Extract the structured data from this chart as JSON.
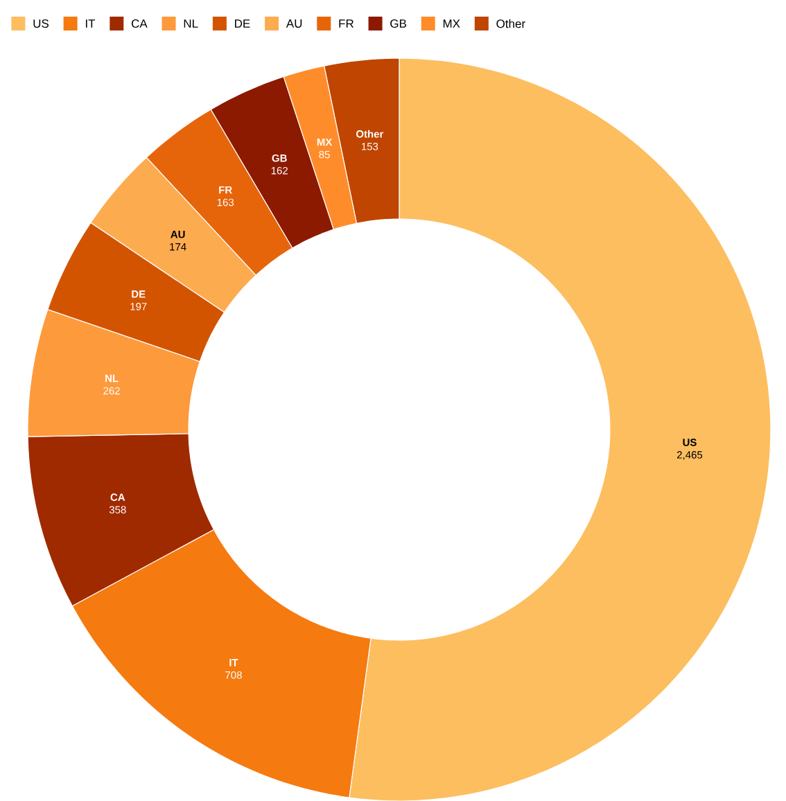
{
  "chart_data": {
    "type": "donut",
    "categories": [
      "US",
      "IT",
      "CA",
      "NL",
      "DE",
      "AU",
      "FR",
      "GB",
      "MX",
      "Other"
    ],
    "values": [
      2465,
      708,
      358,
      262,
      197,
      174,
      163,
      162,
      85,
      153
    ],
    "value_labels": [
      "2,465",
      "708",
      "358",
      "262",
      "197",
      "174",
      "163",
      "162",
      "85",
      "153"
    ],
    "colors": [
      "#fdbe5f",
      "#f57a10",
      "#a02a00",
      "#fd9a3c",
      "#d35400",
      "#fdab4f",
      "#e7650a",
      "#8c1a00",
      "#ff8c2a",
      "#bf4500"
    ],
    "legend": "top left"
  }
}
